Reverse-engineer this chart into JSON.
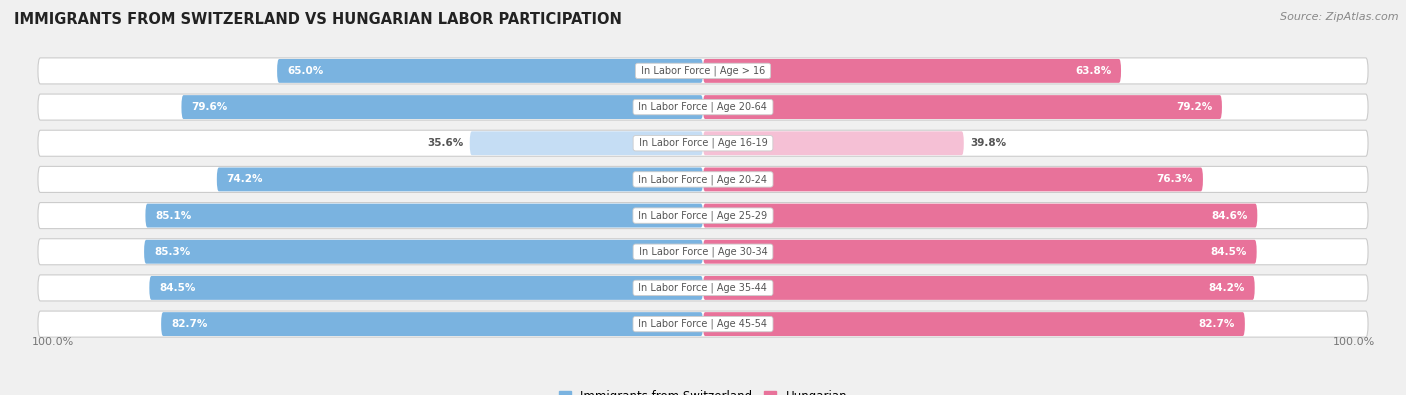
{
  "title": "IMMIGRANTS FROM SWITZERLAND VS HUNGARIAN LABOR PARTICIPATION",
  "source": "Source: ZipAtlas.com",
  "categories": [
    "In Labor Force | Age > 16",
    "In Labor Force | Age 20-64",
    "In Labor Force | Age 16-19",
    "In Labor Force | Age 20-24",
    "In Labor Force | Age 25-29",
    "In Labor Force | Age 30-34",
    "In Labor Force | Age 35-44",
    "In Labor Force | Age 45-54"
  ],
  "swiss_values": [
    65.0,
    79.6,
    35.6,
    74.2,
    85.1,
    85.3,
    84.5,
    82.7
  ],
  "hungarian_values": [
    63.8,
    79.2,
    39.8,
    76.3,
    84.6,
    84.5,
    84.2,
    82.7
  ],
  "swiss_color_full": "#7ab3e0",
  "swiss_color_light": "#c5ddf4",
  "hungarian_color_full": "#e8729a",
  "hungarian_color_light": "#f5c0d5",
  "row_bg_color": "#e8e8e8",
  "bg_color": "#f0f0f0",
  "center_label_color": "#555555",
  "threshold": 50.0,
  "max_value": 100.0
}
